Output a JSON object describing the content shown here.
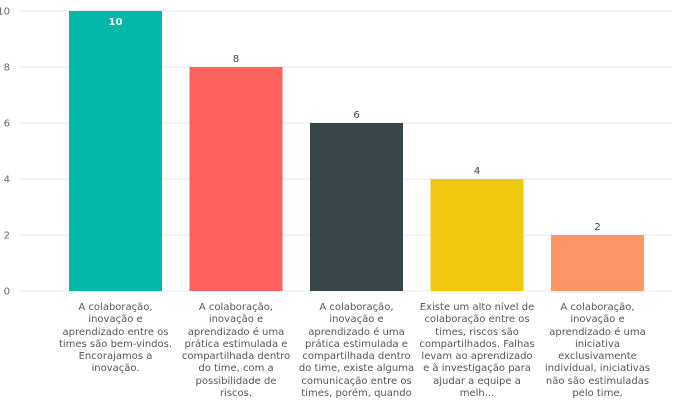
{
  "chart_data": {
    "type": "bar",
    "title": "",
    "xlabel": "",
    "ylabel": "",
    "ylim": [
      0,
      10
    ],
    "yticks": [
      0,
      2,
      4,
      6,
      8,
      10
    ],
    "grid": true,
    "categories": [
      "A colaboração, inovação e aprendizado entre os times são bem-vindos. Encorajamos a inovação.",
      "A colaboração, inovação e aprendizado é uma prática estimulada e compartilhada dentro do time, com a possibilidade de riscos.",
      "A colaboração, inovação e aprendizado é uma prática estimulada e compartilhada dentro do time, existe alguma comunicação entre os times, porém, quando ...",
      "Existe um alto nível de colaboração entre os times, riscos são compartilhados. Falhas levam ao aprendizado e à investigação para ajudar a equipe a melh...",
      "A colaboração, inovação e aprendizado é uma iniciativa exclusivamente individual, iniciativas não são estimuladas pelo time."
    ],
    "values": [
      10,
      8,
      6,
      4,
      2
    ],
    "colors": [
      "#01B8AA",
      "#FD625E",
      "#374649",
      "#F2C80F",
      "#FE9666"
    ]
  }
}
